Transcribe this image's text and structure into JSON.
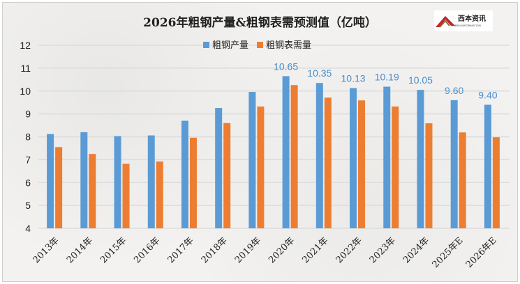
{
  "chart_data": {
    "type": "bar",
    "title": "2026年粗钢产量&粗钢表需预测值（亿吨）",
    "categories": [
      "2013年",
      "2014年",
      "2015年",
      "2016年",
      "2017年",
      "2018年",
      "2019年",
      "2020年",
      "2021年",
      "2022年",
      "2023年",
      "2024年",
      "2025年E",
      "2026年E"
    ],
    "series": [
      {
        "name": "粗钢产量",
        "color": "#5b9bd5",
        "values": [
          8.12,
          8.2,
          8.03,
          8.06,
          8.7,
          9.26,
          9.96,
          10.65,
          10.35,
          10.13,
          10.19,
          10.05,
          9.6,
          9.4
        ],
        "labels": [
          "",
          "",
          "",
          "",
          "",
          "",
          "",
          "10.65",
          "10.35",
          "10.13",
          "10.19",
          "10.05",
          "9.60",
          "9.40"
        ]
      },
      {
        "name": "粗钢表需量",
        "color": "#ed7d31",
        "values": [
          7.55,
          7.25,
          6.82,
          6.92,
          7.96,
          8.6,
          9.32,
          10.26,
          9.71,
          9.59,
          9.32,
          8.59,
          8.19,
          7.98
        ]
      }
    ],
    "ylim": [
      4,
      12
    ],
    "yticks": [
      "4",
      "5",
      "6",
      "7",
      "8",
      "9",
      "10",
      "11",
      "12"
    ],
    "grid": true,
    "legend": "top-center",
    "xlabel": "",
    "ylabel": ""
  },
  "logo": {
    "text": "西本资讯",
    "sub": "XIBEN INFORMATION"
  }
}
